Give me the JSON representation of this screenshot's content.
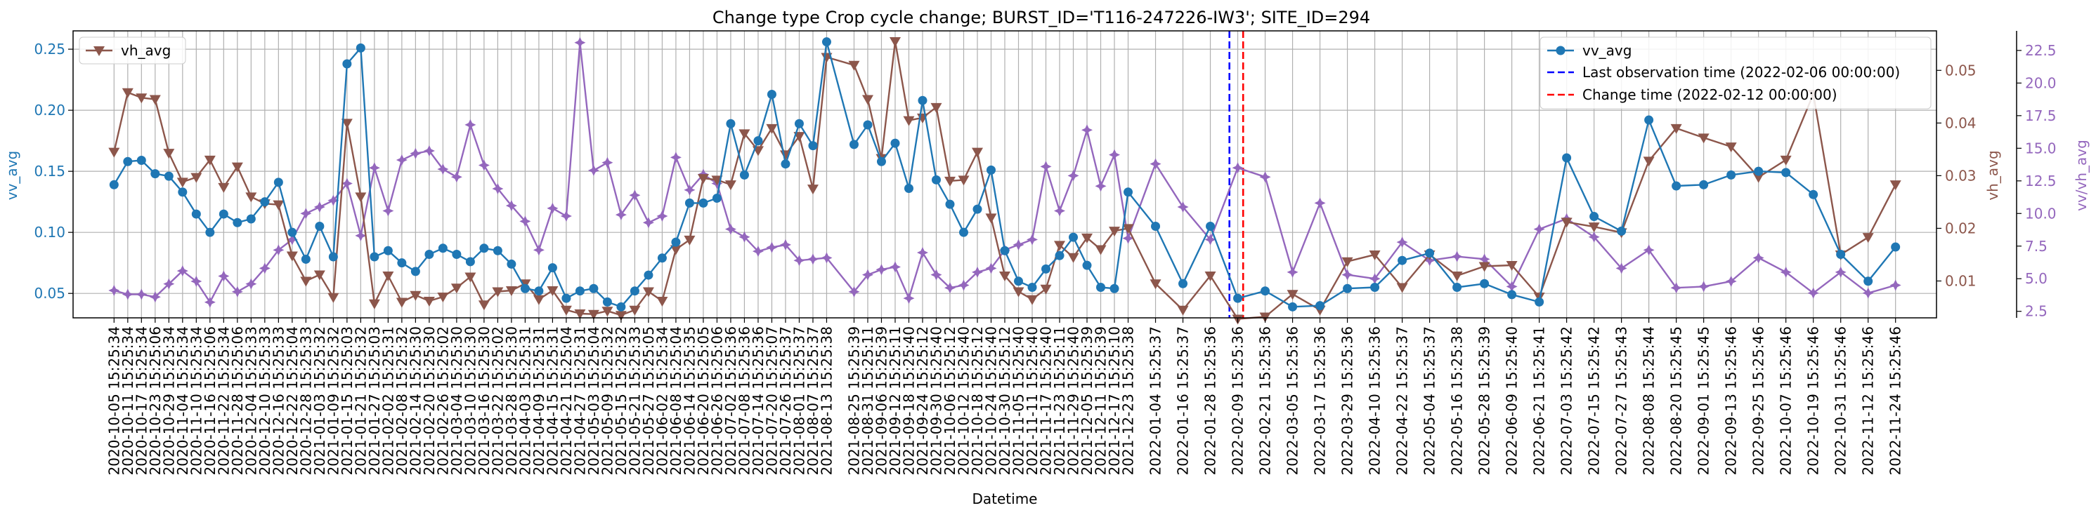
{
  "chart_data": {
    "type": "line",
    "title": "Change type Crop cycle change; BURST_ID='T116-247226-IW3'; SITE_ID=294",
    "xlabel": "Datetime",
    "ylabel_left": "vv_avg",
    "ylabel_right1": "vh_avg",
    "ylabel_right2": "vv/vh_avg",
    "ylim_left": [
      0.03,
      0.265
    ],
    "ylim_right1": [
      0.003,
      0.0575
    ],
    "ylim_right2": [
      2.0,
      24.0
    ],
    "yticks_left": [
      "0.05",
      "0.10",
      "0.15",
      "0.20",
      "0.25"
    ],
    "yticks_right1": [
      "0.01",
      "0.02",
      "0.03",
      "0.04",
      "0.05"
    ],
    "yticks_right2": [
      "2.5",
      "5.0",
      "7.5",
      "10.0",
      "12.5",
      "15.0",
      "17.5",
      "20.0",
      "22.5"
    ],
    "grid": true,
    "legend_left": {
      "placement": "upper-left",
      "entries": [
        "vh_avg"
      ]
    },
    "legend_right": {
      "placement": "upper-right",
      "entries": [
        "vv_avg",
        "Last observation time (2022-02-06 00:00:00)",
        "Change time (2022-02-12 00:00:00)"
      ]
    },
    "colors": {
      "vv": "#1f77b4",
      "vh": "#8c564b",
      "ratio": "#9467bd",
      "last_obs": "#0000ff",
      "change": "#ff0000"
    },
    "x": [
      "2020-10-05 15:25:34",
      "2020-10-11 15:25:34",
      "2020-10-17 15:25:34",
      "2020-10-23 15:25:06",
      "2020-10-29 15:25:34",
      "2020-11-04 15:25:34",
      "2020-11-10 15:25:34",
      "2020-11-16 15:25:06",
      "2020-11-22 15:25:34",
      "2020-11-28 15:25:06",
      "2020-12-04 15:25:33",
      "2020-12-10 15:25:33",
      "2020-12-16 15:25:33",
      "2020-12-22 15:25:04",
      "2020-12-28 15:25:33",
      "2021-01-03 15:25:32",
      "2021-01-09 15:25:32",
      "2021-01-15 15:25:03",
      "2021-01-21 15:25:32",
      "2021-01-27 15:25:03",
      "2021-02-02 15:25:31",
      "2021-02-08 15:25:32",
      "2021-02-14 15:25:30",
      "2021-02-20 15:25:30",
      "2021-02-26 15:25:02",
      "2021-03-04 15:25:30",
      "2021-03-10 15:25:30",
      "2021-03-16 15:25:30",
      "2021-03-22 15:25:02",
      "2021-03-28 15:25:30",
      "2021-04-03 15:25:31",
      "2021-04-09 15:25:31",
      "2021-04-15 15:25:31",
      "2021-04-21 15:25:04",
      "2021-04-27 15:25:31",
      "2021-05-03 15:25:04",
      "2021-05-09 15:25:32",
      "2021-05-15 15:25:32",
      "2021-05-21 15:25:33",
      "2021-05-27 15:25:05",
      "2021-06-02 15:25:34",
      "2021-06-08 15:25:04",
      "2021-06-14 15:25:35",
      "2021-06-20 15:25:05",
      "2021-06-26 15:25:06",
      "2021-07-02 15:25:36",
      "2021-07-08 15:25:36",
      "2021-07-14 15:25:36",
      "2021-07-20 15:25:07",
      "2021-07-26 15:25:37",
      "2021-08-01 15:25:37",
      "2021-08-07 15:25:37",
      "2021-08-13 15:25:38",
      "2021-08-25 15:25:39",
      "2021-08-31 15:25:11",
      "2021-09-06 15:25:39",
      "2021-09-12 15:25:11",
      "2021-09-18 15:25:40",
      "2021-09-24 15:25:12",
      "2021-09-30 15:25:40",
      "2021-10-06 15:25:12",
      "2021-10-12 15:25:40",
      "2021-10-18 15:25:12",
      "2021-10-24 15:25:40",
      "2021-10-30 15:25:12",
      "2021-11-05 15:25:40",
      "2021-11-11 15:25:40",
      "2021-11-17 15:25:40",
      "2021-11-23 15:25:11",
      "2021-11-29 15:25:40",
      "2021-12-05 15:25:39",
      "2021-12-11 15:25:39",
      "2021-12-17 15:25:10",
      "2021-12-23 15:25:38",
      "2022-01-04 15:25:37",
      "2022-01-16 15:25:37",
      "2022-01-28 15:25:36",
      "2022-02-09 15:25:36",
      "2022-02-21 15:25:36",
      "2022-03-05 15:25:36",
      "2022-03-17 15:25:36",
      "2022-03-29 15:25:36",
      "2022-04-10 15:25:36",
      "2022-04-22 15:25:37",
      "2022-05-04 15:25:37",
      "2022-05-16 15:25:38",
      "2022-05-28 15:25:39",
      "2022-06-09 15:25:40",
      "2022-06-21 15:25:41",
      "2022-07-03 15:25:42",
      "2022-07-15 15:25:42",
      "2022-07-27 15:25:43",
      "2022-08-08 15:25:44",
      "2022-08-20 15:25:45",
      "2022-09-01 15:25:45",
      "2022-09-13 15:25:46",
      "2022-09-25 15:25:46",
      "2022-10-07 15:25:46",
      "2022-10-19 15:25:46",
      "2022-10-31 15:25:46",
      "2022-11-12 15:25:46",
      "2022-11-24 15:25:46"
    ],
    "series": [
      {
        "name": "vv_avg",
        "axis": "left",
        "marker": "circle",
        "values": [
          0.139,
          0.158,
          0.159,
          0.148,
          0.146,
          0.133,
          0.115,
          0.1,
          0.115,
          0.108,
          0.111,
          0.125,
          0.141,
          0.1,
          0.078,
          0.105,
          0.08,
          0.238,
          0.251,
          0.08,
          0.085,
          0.075,
          0.068,
          0.082,
          0.087,
          0.082,
          0.076,
          0.087,
          0.085,
          0.074,
          0.054,
          0.052,
          0.071,
          0.046,
          0.052,
          0.054,
          0.043,
          0.039,
          0.052,
          0.065,
          0.079,
          0.092,
          0.124,
          0.124,
          0.128,
          0.189,
          0.147,
          0.175,
          0.213,
          0.156,
          0.189,
          0.171,
          0.256,
          0.172,
          0.188,
          0.158,
          0.173,
          0.136,
          0.208,
          0.143,
          0.123,
          0.1,
          0.119,
          0.151,
          0.085,
          0.06,
          0.055,
          0.07,
          0.081,
          0.096,
          0.073,
          0.055,
          0.054,
          0.133,
          0.105,
          0.058,
          0.105,
          0.046,
          0.052,
          0.039,
          0.04,
          0.054,
          0.055,
          0.077,
          0.083,
          0.055,
          0.058,
          0.049,
          0.043,
          0.161,
          0.113,
          0.101,
          0.192,
          0.138,
          0.139,
          0.147,
          0.15,
          0.149,
          0.131,
          0.082,
          0.06,
          0.088
        ]
      },
      {
        "name": "vh_avg",
        "axis": "right1",
        "marker": "triangle-down",
        "values": [
          0.0345,
          0.0458,
          0.0448,
          0.0445,
          0.0343,
          0.0288,
          0.0297,
          0.033,
          0.0278,
          0.0317,
          0.026,
          0.0247,
          0.0245,
          0.0148,
          0.01,
          0.0112,
          0.0069,
          0.04,
          0.026,
          0.0057,
          0.011,
          0.006,
          0.0073,
          0.0062,
          0.007,
          0.0087,
          0.0108,
          0.0055,
          0.008,
          0.0082,
          0.0095,
          0.0065,
          0.0082,
          0.0045,
          0.0038,
          0.0037,
          0.0043,
          0.0035,
          0.0045,
          0.008,
          0.0062,
          0.016,
          0.0178,
          0.0295,
          0.0292,
          0.0283,
          0.038,
          0.0348,
          0.039,
          0.034,
          0.0375,
          0.0275,
          0.0525,
          0.051,
          0.0445,
          0.0333,
          0.0555,
          0.0405,
          0.041,
          0.043,
          0.029,
          0.0292,
          0.0345,
          0.022,
          0.011,
          0.008,
          0.0065,
          0.0085,
          0.0168,
          0.0145,
          0.0182,
          0.016,
          0.0195,
          0.02,
          0.0095,
          0.0045,
          0.011,
          0.0028,
          0.0032,
          0.0075,
          0.0045,
          0.0137,
          0.015,
          0.0088,
          0.015,
          0.011,
          0.0128,
          0.013,
          0.007,
          0.0212,
          0.0203,
          0.0192,
          0.0328,
          0.039,
          0.0372,
          0.0355,
          0.0297,
          0.033,
          0.0455,
          0.015,
          0.0183,
          0.0283
        ]
      },
      {
        "name": "vv/vh_avg",
        "axis": "right2",
        "marker": "plus",
        "values": [
          4.1,
          3.8,
          3.8,
          3.6,
          4.6,
          5.6,
          4.8,
          3.2,
          5.2,
          4.0,
          4.6,
          5.8,
          7.2,
          8.0,
          10.0,
          10.5,
          11.0,
          12.3,
          8.3,
          13.5,
          10.2,
          14.1,
          14.6,
          14.8,
          13.4,
          12.8,
          16.8,
          13.7,
          11.9,
          10.6,
          9.4,
          7.2,
          10.4,
          9.8,
          23.1,
          13.3,
          13.9,
          9.9,
          11.4,
          9.3,
          9.8,
          14.3,
          11.8,
          13.0,
          12.3,
          8.8,
          8.2,
          7.1,
          7.4,
          7.6,
          6.4,
          6.5,
          6.6,
          4.0,
          5.3,
          5.7,
          5.9,
          3.5,
          7.0,
          5.3,
          4.3,
          4.5,
          5.5,
          5.8,
          7.2,
          7.6,
          8.0,
          13.6,
          10.2,
          12.9,
          16.4,
          12.1,
          14.5,
          8.1,
          13.8,
          10.5,
          8.0,
          13.5,
          12.8,
          5.5,
          10.8,
          5.3,
          5.0,
          7.8,
          6.4,
          6.7,
          6.5,
          4.4,
          8.8,
          9.6,
          8.2,
          5.8,
          7.2,
          4.3,
          4.4,
          4.8,
          6.6,
          5.5,
          3.9,
          5.5,
          3.9,
          4.5
        ]
      }
    ],
    "vlines": [
      {
        "label": "Last observation time (2022-02-06 00:00:00)",
        "x": "2022-02-06 00:00:00",
        "color": "#0000ff",
        "style": "dashed"
      },
      {
        "label": "Change time (2022-02-12 00:00:00)",
        "x": "2022-02-12 00:00:00",
        "color": "#ff0000",
        "style": "dashed"
      }
    ]
  }
}
